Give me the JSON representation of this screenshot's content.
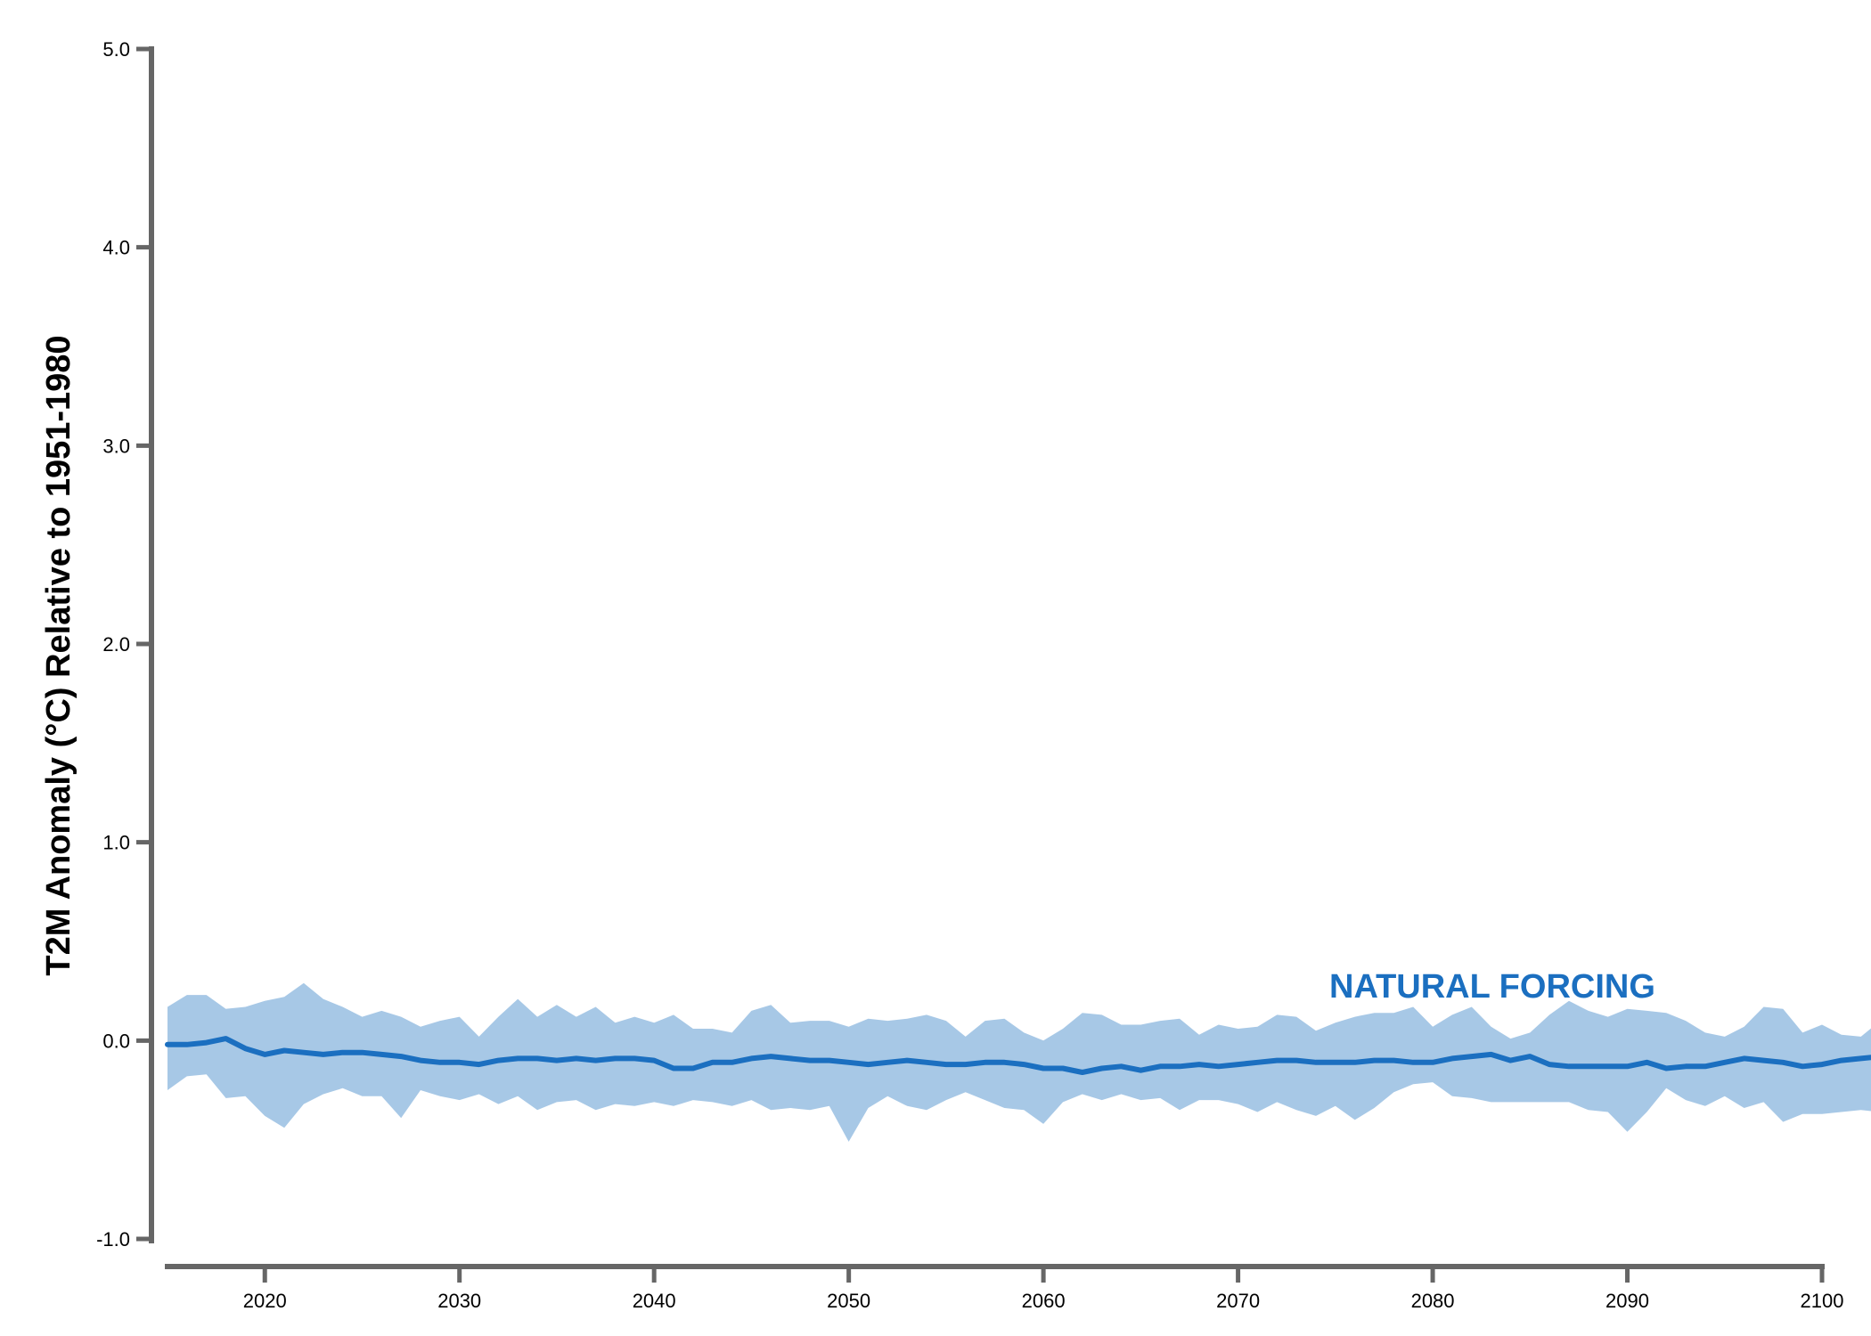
{
  "chart_data": {
    "type": "area",
    "title": "",
    "xlabel": "",
    "ylabel": "T2M Anomaly (°C) Relative to 1951-1980",
    "xlim": [
      2015,
      2100
    ],
    "ylim": [
      -1.0,
      5.0
    ],
    "x_ticks": [
      2020,
      2030,
      2040,
      2050,
      2060,
      2070,
      2080,
      2090,
      2100
    ],
    "y_ticks": [
      "-1.0",
      "0.0",
      "1.0",
      "2.0",
      "3.0",
      "4.0",
      "5.0"
    ],
    "grid": false,
    "colors": {
      "band": "#a7c8e6",
      "line": "#1b6fc0",
      "axis": "#666666"
    },
    "series": [
      {
        "name": "NATURAL FORCING",
        "x_start": 2015,
        "x_step": 1,
        "mean": [
          -0.02,
          -0.02,
          -0.01,
          0.01,
          -0.04,
          -0.07,
          -0.05,
          -0.06,
          -0.07,
          -0.06,
          -0.06,
          -0.07,
          -0.08,
          -0.1,
          -0.11,
          -0.11,
          -0.12,
          -0.1,
          -0.09,
          -0.09,
          -0.1,
          -0.09,
          -0.1,
          -0.09,
          -0.09,
          -0.1,
          -0.14,
          -0.14,
          -0.11,
          -0.11,
          -0.09,
          -0.08,
          -0.09,
          -0.1,
          -0.1,
          -0.11,
          -0.12,
          -0.11,
          -0.1,
          -0.11,
          -0.12,
          -0.12,
          -0.11,
          -0.11,
          -0.12,
          -0.14,
          -0.14,
          -0.16,
          -0.14,
          -0.13,
          -0.15,
          -0.13,
          -0.13,
          -0.12,
          -0.13,
          -0.12,
          -0.11,
          -0.1,
          -0.1,
          -0.11,
          -0.11,
          -0.11,
          -0.1,
          -0.1,
          -0.11,
          -0.11,
          -0.09,
          -0.08,
          -0.07,
          -0.1,
          -0.08,
          -0.12,
          -0.13,
          -0.13,
          -0.13,
          -0.13,
          -0.11,
          -0.14,
          -0.13,
          -0.13,
          -0.11,
          -0.09,
          -0.1,
          -0.11,
          -0.13,
          -0.12,
          -0.1,
          -0.09,
          -0.08,
          -0.11,
          -0.12
        ],
        "upper": [
          0.17,
          0.23,
          0.23,
          0.16,
          0.17,
          0.2,
          0.22,
          0.29,
          0.21,
          0.17,
          0.12,
          0.15,
          0.12,
          0.07,
          0.1,
          0.12,
          0.02,
          0.12,
          0.21,
          0.12,
          0.18,
          0.12,
          0.17,
          0.09,
          0.12,
          0.09,
          0.13,
          0.06,
          0.06,
          0.04,
          0.15,
          0.18,
          0.09,
          0.1,
          0.1,
          0.07,
          0.11,
          0.1,
          0.11,
          0.13,
          0.1,
          0.02,
          0.1,
          0.11,
          0.04,
          0.0,
          0.06,
          0.14,
          0.13,
          0.08,
          0.08,
          0.1,
          0.11,
          0.03,
          0.08,
          0.06,
          0.07,
          0.13,
          0.12,
          0.05,
          0.09,
          0.12,
          0.14,
          0.14,
          0.17,
          0.07,
          0.13,
          0.17,
          0.07,
          0.01,
          0.04,
          0.13,
          0.2,
          0.15,
          0.12,
          0.16,
          0.15,
          0.14,
          0.1,
          0.04,
          0.02,
          0.07,
          0.17,
          0.16,
          0.04,
          0.08,
          0.03,
          0.02,
          0.1,
          0.08,
          0.08
        ],
        "lower": [
          -0.25,
          -0.18,
          -0.17,
          -0.29,
          -0.28,
          -0.38,
          -0.44,
          -0.32,
          -0.27,
          -0.24,
          -0.28,
          -0.28,
          -0.39,
          -0.25,
          -0.28,
          -0.3,
          -0.27,
          -0.32,
          -0.28,
          -0.35,
          -0.31,
          -0.3,
          -0.35,
          -0.32,
          -0.33,
          -0.31,
          -0.33,
          -0.3,
          -0.31,
          -0.33,
          -0.3,
          -0.35,
          -0.34,
          -0.35,
          -0.33,
          -0.51,
          -0.34,
          -0.28,
          -0.33,
          -0.35,
          -0.3,
          -0.26,
          -0.3,
          -0.34,
          -0.35,
          -0.42,
          -0.31,
          -0.27,
          -0.3,
          -0.27,
          -0.3,
          -0.29,
          -0.35,
          -0.3,
          -0.3,
          -0.32,
          -0.36,
          -0.31,
          -0.35,
          -0.38,
          -0.33,
          -0.4,
          -0.34,
          -0.26,
          -0.22,
          -0.21,
          -0.28,
          -0.29,
          -0.31,
          -0.31,
          -0.31,
          -0.31,
          -0.31,
          -0.35,
          -0.36,
          -0.46,
          -0.36,
          -0.24,
          -0.3,
          -0.33,
          -0.28,
          -0.34,
          -0.31,
          -0.41,
          -0.37,
          -0.37,
          -0.36,
          -0.35,
          -0.36,
          -0.35,
          -0.35
        ]
      }
    ]
  }
}
